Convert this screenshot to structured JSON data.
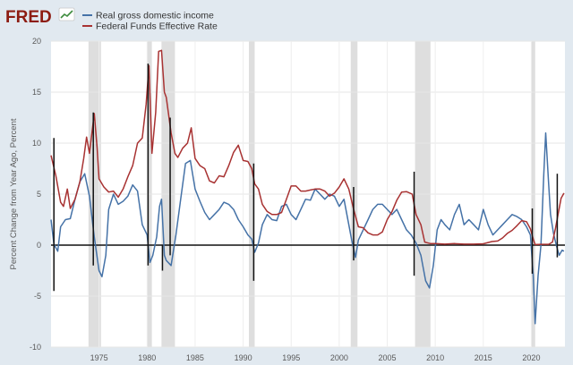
{
  "brand": {
    "logo": "FRED",
    "logo_color": "#8d1c12",
    "icon": "fred-chart-icon"
  },
  "chart_data": {
    "type": "line",
    "title": "",
    "xlabel": "",
    "ylabel": "Percent Change from Year Ago, Percent",
    "xlim": [
      1970,
      2023.5
    ],
    "ylim": [
      -10,
      20
    ],
    "yticks": [
      -10,
      -5,
      0,
      5,
      10,
      15,
      20
    ],
    "xticks": [
      1975,
      1980,
      1985,
      1990,
      1995,
      2000,
      2005,
      2010,
      2015,
      2020
    ],
    "grid": true,
    "legend_position": "top-left",
    "recessions": [
      [
        1973.9,
        1975.2
      ],
      [
        1980.0,
        1980.5
      ],
      [
        1981.5,
        1982.9
      ],
      [
        1990.6,
        1991.2
      ],
      [
        2001.2,
        2001.9
      ],
      [
        2007.9,
        2009.5
      ],
      [
        2020.0,
        2020.4
      ]
    ],
    "annotation_lines": [
      {
        "x": 1970.3,
        "y1": -4.5,
        "y2": 10.5
      },
      {
        "x": 1974.4,
        "y1": -2.0,
        "y2": 13.0
      },
      {
        "x": 1980.1,
        "y1": -2.0,
        "y2": 17.8
      },
      {
        "x": 1981.6,
        "y1": -2.5,
        "y2": 0.0
      },
      {
        "x": 1982.4,
        "y1": -1.0,
        "y2": 12.5
      },
      {
        "x": 1991.1,
        "y1": -3.5,
        "y2": 8.0
      },
      {
        "x": 2001.5,
        "y1": -1.5,
        "y2": 5.7
      },
      {
        "x": 2007.8,
        "y1": -3.0,
        "y2": 7.2
      },
      {
        "x": 2020.1,
        "y1": -2.8,
        "y2": 3.6
      },
      {
        "x": 2022.7,
        "y1": -1.2,
        "y2": 7.0
      }
    ],
    "series": [
      {
        "name": "Real gross domestic income",
        "color": "#4572a7",
        "points": [
          [
            1970.0,
            2.5
          ],
          [
            1970.3,
            0.1
          ],
          [
            1970.7,
            -0.6
          ],
          [
            1971.0,
            1.8
          ],
          [
            1971.5,
            2.5
          ],
          [
            1972.0,
            2.6
          ],
          [
            1972.5,
            4.5
          ],
          [
            1973.0,
            6.2
          ],
          [
            1973.5,
            7.0
          ],
          [
            1974.0,
            4.8
          ],
          [
            1974.5,
            0.8
          ],
          [
            1975.0,
            -2.5
          ],
          [
            1975.3,
            -3.1
          ],
          [
            1975.7,
            -1.0
          ],
          [
            1976.0,
            3.5
          ],
          [
            1976.5,
            5.0
          ],
          [
            1977.0,
            4.0
          ],
          [
            1977.5,
            4.3
          ],
          [
            1978.0,
            4.8
          ],
          [
            1978.5,
            5.9
          ],
          [
            1979.0,
            5.3
          ],
          [
            1979.5,
            2.0
          ],
          [
            1980.0,
            1.0
          ],
          [
            1980.3,
            -1.7
          ],
          [
            1980.6,
            -1.0
          ],
          [
            1981.0,
            0.8
          ],
          [
            1981.3,
            3.8
          ],
          [
            1981.5,
            4.5
          ],
          [
            1981.8,
            -1.0
          ],
          [
            1982.0,
            -1.5
          ],
          [
            1982.5,
            -2.0
          ],
          [
            1983.0,
            1.0
          ],
          [
            1983.5,
            4.5
          ],
          [
            1984.0,
            8.0
          ],
          [
            1984.5,
            8.3
          ],
          [
            1985.0,
            5.5
          ],
          [
            1985.5,
            4.3
          ],
          [
            1986.0,
            3.2
          ],
          [
            1986.5,
            2.5
          ],
          [
            1987.0,
            3.0
          ],
          [
            1987.5,
            3.5
          ],
          [
            1988.0,
            4.2
          ],
          [
            1988.5,
            4.0
          ],
          [
            1989.0,
            3.5
          ],
          [
            1989.5,
            2.5
          ],
          [
            1990.0,
            1.8
          ],
          [
            1990.5,
            1.0
          ],
          [
            1990.9,
            0.6
          ],
          [
            1991.2,
            -0.7
          ],
          [
            1991.6,
            0.2
          ],
          [
            1992.0,
            2.0
          ],
          [
            1992.5,
            3.0
          ],
          [
            1993.0,
            2.5
          ],
          [
            1993.5,
            2.4
          ],
          [
            1994.0,
            3.8
          ],
          [
            1994.5,
            4.0
          ],
          [
            1995.0,
            3.0
          ],
          [
            1995.5,
            2.5
          ],
          [
            1996.0,
            3.5
          ],
          [
            1996.5,
            4.5
          ],
          [
            1997.0,
            4.4
          ],
          [
            1997.5,
            5.5
          ],
          [
            1998.0,
            5.0
          ],
          [
            1998.5,
            4.5
          ],
          [
            1999.0,
            5.0
          ],
          [
            1999.5,
            4.8
          ],
          [
            2000.0,
            3.8
          ],
          [
            2000.5,
            4.5
          ],
          [
            2001.0,
            2.0
          ],
          [
            2001.3,
            0.5
          ],
          [
            2001.7,
            -1.2
          ],
          [
            2002.0,
            0.5
          ],
          [
            2002.5,
            1.5
          ],
          [
            2003.0,
            2.5
          ],
          [
            2003.5,
            3.5
          ],
          [
            2004.0,
            4.0
          ],
          [
            2004.5,
            4.0
          ],
          [
            2005.0,
            3.5
          ],
          [
            2005.5,
            3.0
          ],
          [
            2006.0,
            3.5
          ],
          [
            2006.5,
            2.5
          ],
          [
            2007.0,
            1.5
          ],
          [
            2007.5,
            1.0
          ],
          [
            2008.0,
            0.2
          ],
          [
            2008.5,
            -1.0
          ],
          [
            2009.0,
            -3.5
          ],
          [
            2009.4,
            -4.2
          ],
          [
            2009.8,
            -2.0
          ],
          [
            2010.2,
            1.5
          ],
          [
            2010.6,
            2.5
          ],
          [
            2011.0,
            2.0
          ],
          [
            2011.5,
            1.5
          ],
          [
            2012.0,
            3.0
          ],
          [
            2012.5,
            4.0
          ],
          [
            2013.0,
            2.0
          ],
          [
            2013.5,
            2.5
          ],
          [
            2014.0,
            2.0
          ],
          [
            2014.5,
            1.5
          ],
          [
            2015.0,
            3.5
          ],
          [
            2015.5,
            2.0
          ],
          [
            2016.0,
            1.0
          ],
          [
            2016.5,
            1.5
          ],
          [
            2017.0,
            2.0
          ],
          [
            2017.5,
            2.5
          ],
          [
            2018.0,
            3.0
          ],
          [
            2018.5,
            2.8
          ],
          [
            2019.0,
            2.5
          ],
          [
            2019.5,
            1.8
          ],
          [
            2019.9,
            1.0
          ],
          [
            2020.2,
            -3.0
          ],
          [
            2020.4,
            -7.7
          ],
          [
            2020.7,
            -3.0
          ],
          [
            2021.0,
            0.0
          ],
          [
            2021.3,
            7.0
          ],
          [
            2021.5,
            11.0
          ],
          [
            2021.8,
            6.0
          ],
          [
            2022.0,
            3.0
          ],
          [
            2022.3,
            1.2
          ],
          [
            2022.6,
            0.0
          ],
          [
            2022.9,
            -1.0
          ],
          [
            2023.2,
            -0.5
          ],
          [
            2023.4,
            -0.6
          ]
        ]
      },
      {
        "name": "Federal Funds Effective Rate",
        "color": "#a83232",
        "points": [
          [
            1970.0,
            8.8
          ],
          [
            1970.5,
            6.8
          ],
          [
            1971.0,
            4.2
          ],
          [
            1971.3,
            3.8
          ],
          [
            1971.7,
            5.5
          ],
          [
            1972.0,
            3.6
          ],
          [
            1972.5,
            4.5
          ],
          [
            1973.0,
            6.2
          ],
          [
            1973.4,
            8.5
          ],
          [
            1973.7,
            10.6
          ],
          [
            1974.0,
            9.0
          ],
          [
            1974.5,
            12.9
          ],
          [
            1974.8,
            9.5
          ],
          [
            1975.0,
            6.5
          ],
          [
            1975.5,
            5.7
          ],
          [
            1976.0,
            5.2
          ],
          [
            1976.5,
            5.3
          ],
          [
            1977.0,
            4.7
          ],
          [
            1977.5,
            5.5
          ],
          [
            1978.0,
            6.7
          ],
          [
            1978.5,
            7.8
          ],
          [
            1979.0,
            10.0
          ],
          [
            1979.5,
            10.5
          ],
          [
            1979.9,
            13.8
          ],
          [
            1980.2,
            17.6
          ],
          [
            1980.5,
            9.0
          ],
          [
            1980.9,
            13.0
          ],
          [
            1981.2,
            19.0
          ],
          [
            1981.5,
            19.1
          ],
          [
            1981.8,
            15.0
          ],
          [
            1982.0,
            14.5
          ],
          [
            1982.5,
            11.0
          ],
          [
            1982.9,
            9.0
          ],
          [
            1983.2,
            8.6
          ],
          [
            1983.7,
            9.5
          ],
          [
            1984.2,
            10.0
          ],
          [
            1984.6,
            11.5
          ],
          [
            1985.0,
            8.5
          ],
          [
            1985.5,
            7.8
          ],
          [
            1986.0,
            7.5
          ],
          [
            1986.5,
            6.3
          ],
          [
            1987.0,
            6.1
          ],
          [
            1987.5,
            6.8
          ],
          [
            1988.0,
            6.7
          ],
          [
            1988.5,
            7.8
          ],
          [
            1989.0,
            9.1
          ],
          [
            1989.5,
            9.8
          ],
          [
            1990.0,
            8.3
          ],
          [
            1990.5,
            8.2
          ],
          [
            1990.9,
            7.5
          ],
          [
            1991.2,
            6.0
          ],
          [
            1991.6,
            5.5
          ],
          [
            1992.0,
            4.0
          ],
          [
            1992.5,
            3.3
          ],
          [
            1993.0,
            3.0
          ],
          [
            1993.5,
            3.0
          ],
          [
            1994.0,
            3.2
          ],
          [
            1994.5,
            4.5
          ],
          [
            1995.0,
            5.8
          ],
          [
            1995.5,
            5.8
          ],
          [
            1996.0,
            5.3
          ],
          [
            1996.5,
            5.3
          ],
          [
            1997.0,
            5.4
          ],
          [
            1997.5,
            5.5
          ],
          [
            1998.0,
            5.5
          ],
          [
            1998.5,
            5.3
          ],
          [
            1999.0,
            4.8
          ],
          [
            1999.5,
            5.1
          ],
          [
            2000.0,
            5.7
          ],
          [
            2000.5,
            6.5
          ],
          [
            2001.0,
            5.5
          ],
          [
            2001.5,
            3.5
          ],
          [
            2002.0,
            1.8
          ],
          [
            2002.5,
            1.7
          ],
          [
            2003.0,
            1.2
          ],
          [
            2003.5,
            1.0
          ],
          [
            2004.0,
            1.0
          ],
          [
            2004.5,
            1.3
          ],
          [
            2005.0,
            2.5
          ],
          [
            2005.5,
            3.3
          ],
          [
            2006.0,
            4.4
          ],
          [
            2006.5,
            5.2
          ],
          [
            2007.0,
            5.25
          ],
          [
            2007.6,
            5.0
          ],
          [
            2008.0,
            3.0
          ],
          [
            2008.5,
            2.0
          ],
          [
            2008.9,
            0.3
          ],
          [
            2009.5,
            0.15
          ],
          [
            2010.0,
            0.15
          ],
          [
            2011.0,
            0.1
          ],
          [
            2012.0,
            0.15
          ],
          [
            2013.0,
            0.1
          ],
          [
            2014.0,
            0.1
          ],
          [
            2015.0,
            0.13
          ],
          [
            2015.9,
            0.35
          ],
          [
            2016.5,
            0.4
          ],
          [
            2017.0,
            0.7
          ],
          [
            2017.5,
            1.15
          ],
          [
            2018.0,
            1.45
          ],
          [
            2018.5,
            1.9
          ],
          [
            2019.0,
            2.4
          ],
          [
            2019.5,
            2.3
          ],
          [
            2019.9,
            1.6
          ],
          [
            2020.2,
            0.6
          ],
          [
            2020.4,
            0.05
          ],
          [
            2021.0,
            0.08
          ],
          [
            2021.8,
            0.08
          ],
          [
            2022.2,
            0.3
          ],
          [
            2022.5,
            1.6
          ],
          [
            2022.8,
            3.1
          ],
          [
            2023.1,
            4.6
          ],
          [
            2023.4,
            5.1
          ]
        ]
      }
    ]
  }
}
